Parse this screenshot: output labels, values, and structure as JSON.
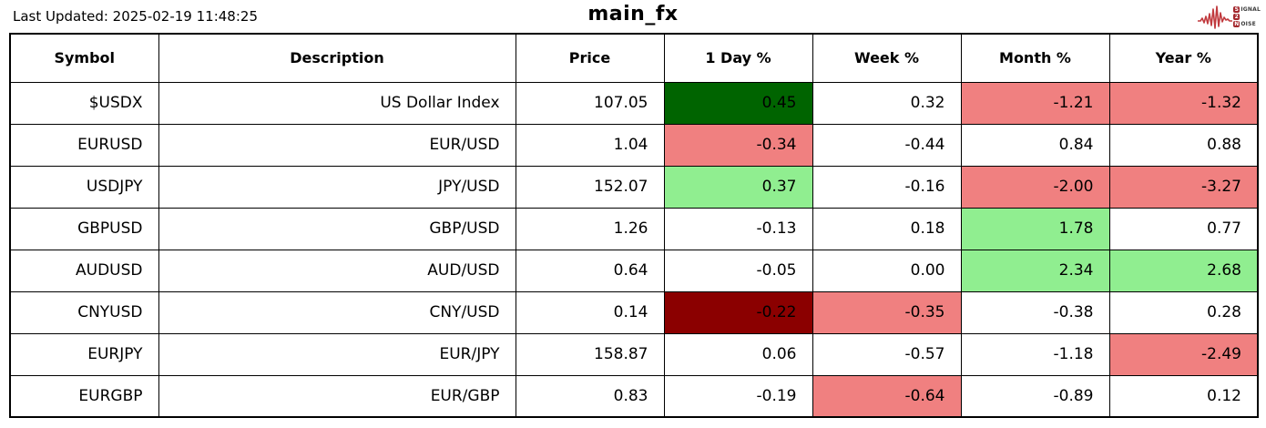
{
  "header": {
    "last_updated": "Last Updated: 2025-02-19 11:48:25",
    "title": "main_fx"
  },
  "logo": {
    "name": "signal-2-noise",
    "wave_color": "#c13a3e",
    "badge_color": "#a3282d",
    "words": [
      {
        "badge": "S",
        "rest": "IGNAL"
      },
      {
        "badge": "2",
        "rest": ""
      },
      {
        "badge": "N",
        "rest": "OISE"
      }
    ]
  },
  "colors": {
    "up_strong": "#006400",
    "up": "#90EE90",
    "down": "#F08080",
    "down_strong": "#8B0000",
    "none": "#FFFFFF"
  },
  "table": {
    "columns": [
      "Symbol",
      "Description",
      "Price",
      "1 Day %",
      "Week %",
      "Month %",
      "Year %"
    ],
    "rows": [
      {
        "symbol": "$USDX",
        "description": "US Dollar Index",
        "price": "107.05",
        "changes": [
          {
            "label": "1 Day %",
            "value": "0.45",
            "tone": "up_strong"
          },
          {
            "label": "Week %",
            "value": "0.32",
            "tone": "none"
          },
          {
            "label": "Month %",
            "value": "-1.21",
            "tone": "down"
          },
          {
            "label": "Year %",
            "value": "-1.32",
            "tone": "down"
          }
        ]
      },
      {
        "symbol": "EURUSD",
        "description": "EUR/USD",
        "price": "1.04",
        "changes": [
          {
            "label": "1 Day %",
            "value": "-0.34",
            "tone": "down"
          },
          {
            "label": "Week %",
            "value": "-0.44",
            "tone": "none"
          },
          {
            "label": "Month %",
            "value": "0.84",
            "tone": "none"
          },
          {
            "label": "Year %",
            "value": "0.88",
            "tone": "none"
          }
        ]
      },
      {
        "symbol": "USDJPY",
        "description": "JPY/USD",
        "price": "152.07",
        "changes": [
          {
            "label": "1 Day %",
            "value": "0.37",
            "tone": "up"
          },
          {
            "label": "Week %",
            "value": "-0.16",
            "tone": "none"
          },
          {
            "label": "Month %",
            "value": "-2.00",
            "tone": "down"
          },
          {
            "label": "Year %",
            "value": "-3.27",
            "tone": "down"
          }
        ]
      },
      {
        "symbol": "GBPUSD",
        "description": "GBP/USD",
        "price": "1.26",
        "changes": [
          {
            "label": "1 Day %",
            "value": "-0.13",
            "tone": "none"
          },
          {
            "label": "Week %",
            "value": "0.18",
            "tone": "none"
          },
          {
            "label": "Month %",
            "value": "1.78",
            "tone": "up"
          },
          {
            "label": "Year %",
            "value": "0.77",
            "tone": "none"
          }
        ]
      },
      {
        "symbol": "AUDUSD",
        "description": "AUD/USD",
        "price": "0.64",
        "changes": [
          {
            "label": "1 Day %",
            "value": "-0.05",
            "tone": "none"
          },
          {
            "label": "Week %",
            "value": "0.00",
            "tone": "none"
          },
          {
            "label": "Month %",
            "value": "2.34",
            "tone": "up"
          },
          {
            "label": "Year %",
            "value": "2.68",
            "tone": "up"
          }
        ]
      },
      {
        "symbol": "CNYUSD",
        "description": "CNY/USD",
        "price": "0.14",
        "changes": [
          {
            "label": "1 Day %",
            "value": "-0.22",
            "tone": "down_strong"
          },
          {
            "label": "Week %",
            "value": "-0.35",
            "tone": "down"
          },
          {
            "label": "Month %",
            "value": "-0.38",
            "tone": "none"
          },
          {
            "label": "Year %",
            "value": "0.28",
            "tone": "none"
          }
        ]
      },
      {
        "symbol": "EURJPY",
        "description": "EUR/JPY",
        "price": "158.87",
        "changes": [
          {
            "label": "1 Day %",
            "value": "0.06",
            "tone": "none"
          },
          {
            "label": "Week %",
            "value": "-0.57",
            "tone": "none"
          },
          {
            "label": "Month %",
            "value": "-1.18",
            "tone": "none"
          },
          {
            "label": "Year %",
            "value": "-2.49",
            "tone": "down"
          }
        ]
      },
      {
        "symbol": "EURGBP",
        "description": "EUR/GBP",
        "price": "0.83",
        "changes": [
          {
            "label": "1 Day %",
            "value": "-0.19",
            "tone": "none"
          },
          {
            "label": "Week %",
            "value": "-0.64",
            "tone": "down"
          },
          {
            "label": "Month %",
            "value": "-0.89",
            "tone": "none"
          },
          {
            "label": "Year %",
            "value": "0.12",
            "tone": "none"
          }
        ]
      }
    ]
  }
}
